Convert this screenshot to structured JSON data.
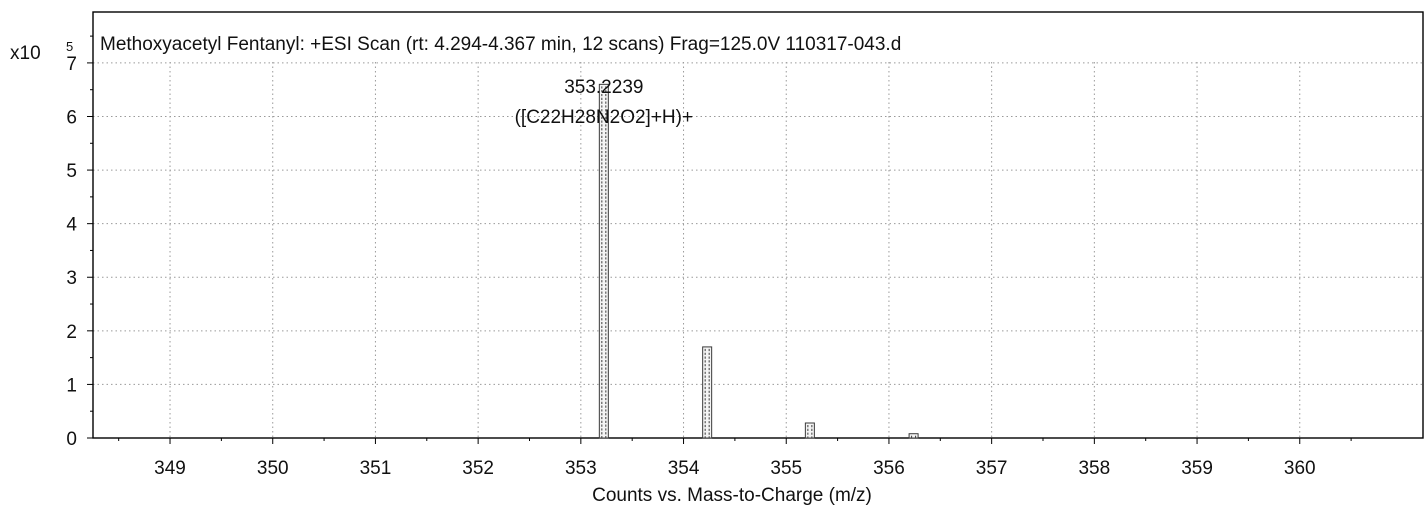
{
  "chart_data": {
    "type": "bar",
    "title": "Methoxyacetyl Fentanyl: +ESI Scan (rt: 4.294-4.367 min, 12 scans) Frag=125.0V 110317-043.d",
    "xlabel": "Counts vs. Mass-to-Charge (m/z)",
    "ylabel": "",
    "y_multiplier": {
      "base": "x10",
      "exponent": "5"
    },
    "xlim": [
      348.25,
      361.2
    ],
    "ylim": [
      0,
      7.95
    ],
    "x_ticks": [
      349,
      350,
      351,
      352,
      353,
      354,
      355,
      356,
      357,
      358,
      359,
      360
    ],
    "y_ticks": [
      0,
      1,
      2,
      3,
      4,
      5,
      6,
      7
    ],
    "grid": true,
    "series": [
      {
        "x": [
          353.2239,
          354.23,
          355.23,
          356.24
        ],
        "values": [
          6.6,
          1.7,
          0.28,
          0.08
        ]
      }
    ],
    "annotations": [
      {
        "x": 353.2239,
        "lines": [
          "353.2239",
          "([C22H28N2O2]+H)+"
        ]
      }
    ]
  }
}
